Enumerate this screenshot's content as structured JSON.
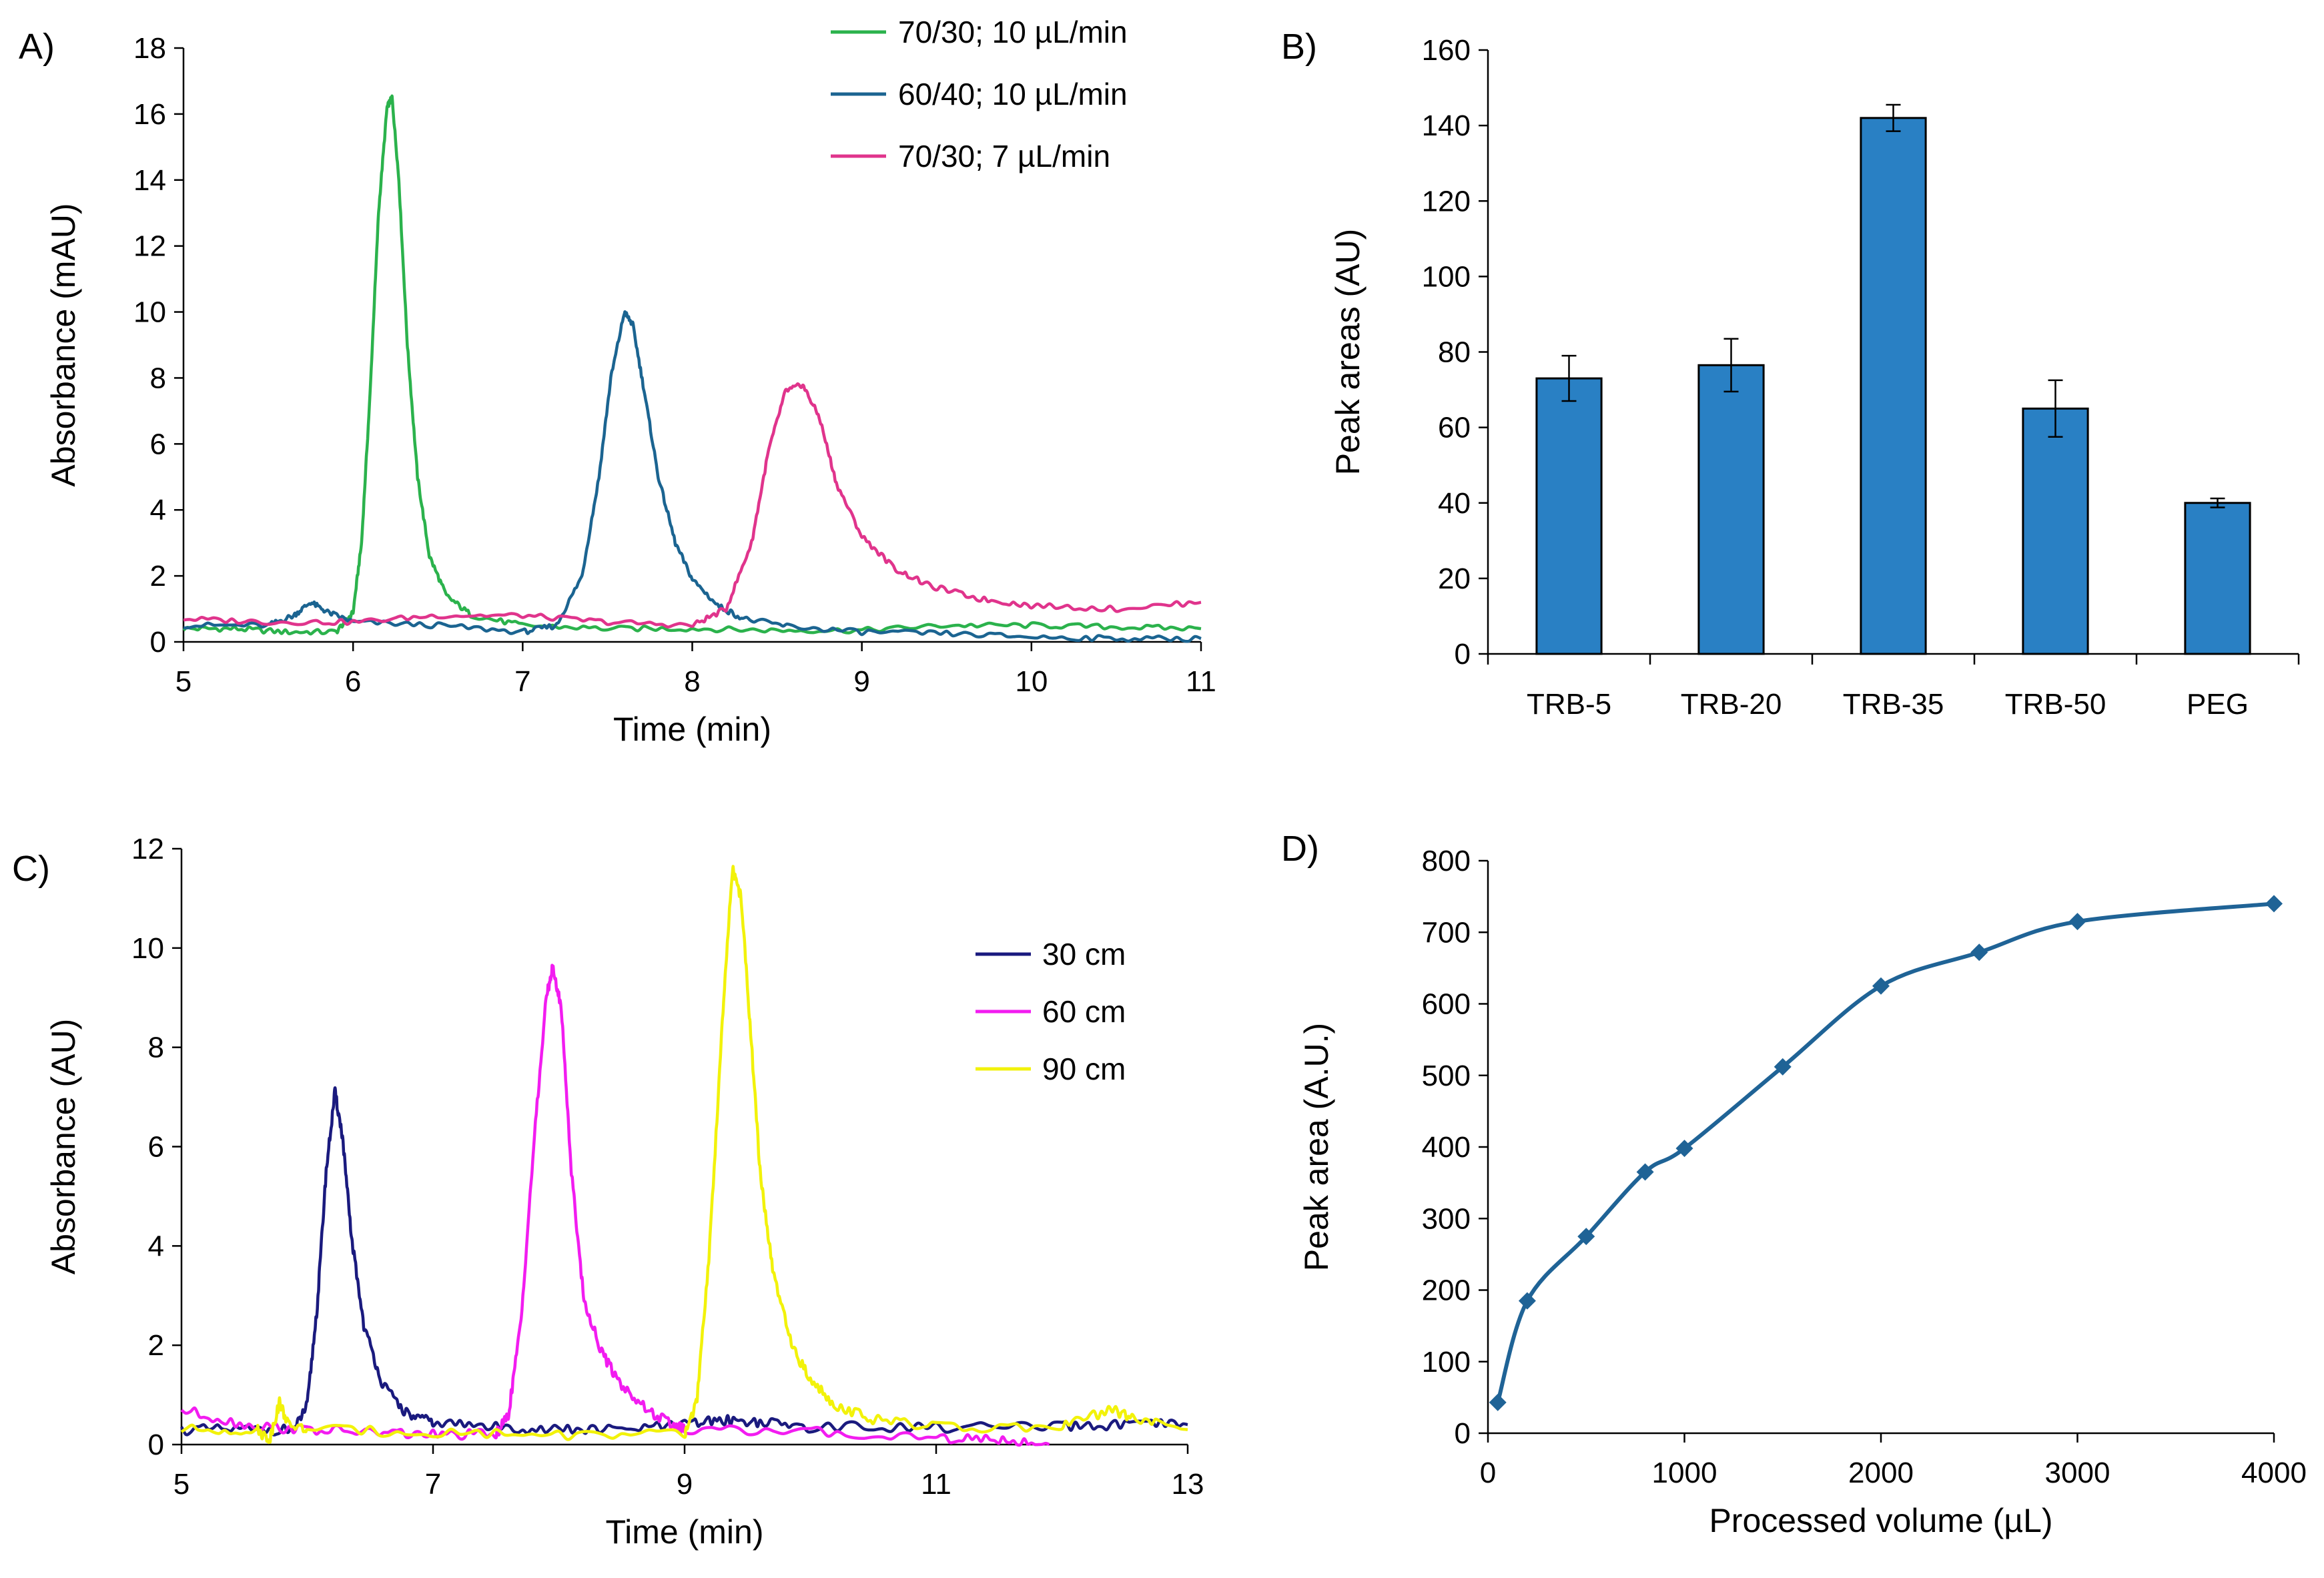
{
  "chart_data": [
    {
      "panel": "A)",
      "type": "line",
      "xlabel": "Time (min)",
      "ylabel": "Absorbance (mAU)",
      "xlim": [
        5,
        11
      ],
      "ylim": [
        0,
        18
      ],
      "xticks": [
        "5",
        "6",
        "7",
        "8",
        "9",
        "10",
        "11"
      ],
      "yticks": [
        "0",
        "2",
        "4",
        "6",
        "8",
        "10",
        "12",
        "14",
        "16",
        "18"
      ],
      "legend_position": "top-right",
      "series": [
        {
          "name": "70/30; 10 µL/min",
          "color": "#2bb24c",
          "x": [
            5.0,
            5.3,
            5.6,
            5.9,
            6.0,
            6.05,
            6.1,
            6.15,
            6.2,
            6.23,
            6.27,
            6.32,
            6.38,
            6.45,
            6.55,
            6.7,
            7.0,
            7.5,
            8.0,
            8.5,
            9.0,
            9.5,
            10.0,
            10.5,
            11.0
          ],
          "y": [
            0.4,
            0.4,
            0.3,
            0.3,
            0.9,
            3.0,
            7.5,
            13.0,
            16.2,
            16.5,
            14.0,
            9.0,
            5.0,
            2.6,
            1.4,
            0.8,
            0.5,
            0.4,
            0.4,
            0.35,
            0.35,
            0.5,
            0.5,
            0.45,
            0.4
          ]
        },
        {
          "name": "60/40; 10 µL/min",
          "color": "#1b6491",
          "x": [
            5.0,
            5.5,
            5.65,
            5.75,
            5.85,
            6.0,
            6.5,
            7.0,
            7.2,
            7.35,
            7.45,
            7.52,
            7.6,
            7.65,
            7.72,
            7.8,
            7.9,
            8.0,
            8.15,
            8.3,
            8.6,
            9.0,
            9.5,
            10.0,
            10.5,
            11.0
          ],
          "y": [
            0.5,
            0.5,
            0.8,
            1.2,
            0.9,
            0.6,
            0.5,
            0.3,
            0.5,
            2.0,
            5.0,
            8.0,
            10.0,
            9.6,
            7.5,
            5.0,
            3.0,
            1.9,
            1.1,
            0.7,
            0.45,
            0.3,
            0.25,
            0.15,
            0.1,
            0.1
          ]
        },
        {
          "name": "70/30; 7 µL/min",
          "color": "#e0348c",
          "x": [
            5.0,
            5.5,
            6.0,
            6.5,
            7.0,
            7.5,
            8.0,
            8.2,
            8.35,
            8.45,
            8.55,
            8.65,
            8.75,
            8.85,
            9.0,
            9.2,
            9.4,
            9.7,
            10.0,
            10.5,
            11.0
          ],
          "y": [
            0.7,
            0.6,
            0.6,
            0.8,
            0.8,
            0.6,
            0.5,
            1.0,
            3.0,
            5.8,
            7.6,
            7.8,
            6.8,
            4.8,
            3.2,
            2.2,
            1.7,
            1.3,
            1.1,
            1.0,
            1.2
          ]
        }
      ]
    },
    {
      "panel": "B)",
      "type": "bar",
      "xlabel": "",
      "ylabel": "Peak areas (AU)",
      "ylim": [
        0,
        160
      ],
      "yticks": [
        "0",
        "20",
        "40",
        "60",
        "80",
        "100",
        "120",
        "140",
        "160"
      ],
      "categories": [
        "TRB-5",
        "TRB-20",
        "TRB-35",
        "TRB-50",
        "PEG"
      ],
      "values": [
        73,
        76.5,
        142,
        65,
        40
      ],
      "errors": [
        6,
        7,
        3.5,
        7.5,
        1.2
      ],
      "color": "#2980c4"
    },
    {
      "panel": "C)",
      "type": "line",
      "xlabel": "Time (min)",
      "ylabel": "Absorbance (AU)",
      "xlim": [
        5,
        13
      ],
      "ylim": [
        0,
        12
      ],
      "xticks": [
        "5",
        "7",
        "9",
        "11",
        "13"
      ],
      "yticks": [
        "0",
        "2",
        "4",
        "6",
        "8",
        "10",
        "12"
      ],
      "legend_position": "middle-right",
      "series": [
        {
          "name": "30 cm",
          "color": "#1a1a7e",
          "x": [
            5.0,
            5.5,
            5.9,
            6.0,
            6.08,
            6.15,
            6.22,
            6.28,
            6.35,
            6.45,
            6.6,
            6.8,
            7.0,
            7.5,
            8.0,
            8.5,
            9.0,
            9.3,
            9.6,
            10.0,
            11.0,
            12.0,
            12.5,
            13.0
          ],
          "y": [
            0.3,
            0.3,
            0.3,
            0.8,
            2.8,
            5.5,
            7.1,
            6.2,
            4.2,
            2.4,
            1.2,
            0.6,
            0.45,
            0.35,
            0.3,
            0.3,
            0.4,
            0.5,
            0.45,
            0.35,
            0.35,
            0.35,
            0.4,
            0.4
          ]
        },
        {
          "name": "60 cm",
          "color": "#f21cf0",
          "x": [
            5.0,
            5.5,
            6.0,
            6.5,
            7.0,
            7.5,
            7.6,
            7.7,
            7.8,
            7.9,
            7.95,
            8.02,
            8.1,
            8.2,
            8.35,
            8.5,
            8.7,
            8.9,
            9.0,
            10.0,
            11.0,
            11.5,
            11.9
          ],
          "y": [
            0.7,
            0.4,
            0.3,
            0.25,
            0.2,
            0.2,
            0.6,
            2.5,
            6.0,
            9.0,
            9.6,
            8.8,
            5.5,
            2.9,
            1.8,
            1.2,
            0.7,
            0.4,
            0.3,
            0.25,
            0.15,
            0.1,
            0.0
          ]
        },
        {
          "name": "90 cm",
          "color": "#f2f20a",
          "x": [
            5.0,
            5.6,
            5.7,
            5.78,
            5.85,
            6.0,
            7.0,
            8.0,
            9.0,
            9.1,
            9.2,
            9.3,
            9.38,
            9.45,
            9.52,
            9.6,
            9.7,
            9.85,
            10.0,
            10.2,
            10.5,
            11.0,
            12.0,
            12.4,
            12.6,
            13.0
          ],
          "y": [
            0.3,
            0.3,
            0.1,
            0.85,
            0.4,
            0.3,
            0.25,
            0.2,
            0.2,
            0.9,
            4.0,
            8.5,
            11.6,
            11.0,
            8.5,
            5.5,
            3.5,
            2.0,
            1.3,
            0.8,
            0.5,
            0.35,
            0.35,
            0.7,
            0.5,
            0.3
          ]
        }
      ]
    },
    {
      "panel": "D)",
      "type": "line",
      "xlabel": "Processed volume (µL)",
      "ylabel": "Peak area (A.U.)",
      "xlim": [
        0,
        4000
      ],
      "ylim": [
        0,
        800
      ],
      "xticks": [
        "0",
        "1000",
        "2000",
        "3000",
        "4000"
      ],
      "yticks": [
        "0",
        "100",
        "200",
        "300",
        "400",
        "500",
        "600",
        "700",
        "800"
      ],
      "color": "#1f6396",
      "x": [
        50,
        200,
        500,
        800,
        1000,
        1500,
        2000,
        2500,
        3000,
        4000
      ],
      "y": [
        43,
        185,
        275,
        365,
        398,
        512,
        625,
        672,
        715,
        740
      ]
    }
  ]
}
